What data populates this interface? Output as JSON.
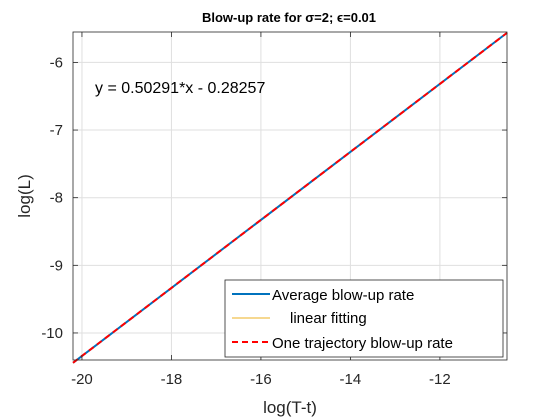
{
  "chart_data": {
    "type": "line",
    "title": "Blow-up rate for σ=2; ϵ=0.01",
    "xlabel": "log(T-t)",
    "ylabel": "log(L)",
    "xlim": [
      -20.2,
      -10.5
    ],
    "ylim": [
      -10.4,
      -5.55
    ],
    "xticks": [
      -20,
      -18,
      -16,
      -14,
      -12
    ],
    "yticks": [
      -10,
      -9,
      -8,
      -7,
      -6
    ],
    "xtick_labels": [
      "-20",
      "-18",
      "-16",
      "-14",
      "-12"
    ],
    "ytick_labels": [
      "-10",
      "-9",
      "-8",
      "-7",
      "-6"
    ],
    "grid": true,
    "legend_position": "bottom-right",
    "annotation": "y = 0.50291*x - 0.28257",
    "series": [
      {
        "name": "Average blow-up rate",
        "color": "#0072BD",
        "style": "solid",
        "x": [
          -20.2,
          -10.5
        ],
        "y": [
          -10.441,
          -5.563
        ]
      },
      {
        "name": "linear fitting",
        "color": "#EDB120",
        "style": "solid",
        "x": [
          -20.2,
          -10.5
        ],
        "y": [
          -10.441,
          -5.563
        ]
      },
      {
        "name": "One trajectory blow-up rate",
        "color": "#FF0000",
        "style": "dashed",
        "x": [
          -20.2,
          -10.5
        ],
        "y": [
          -10.441,
          -5.563
        ]
      }
    ]
  }
}
